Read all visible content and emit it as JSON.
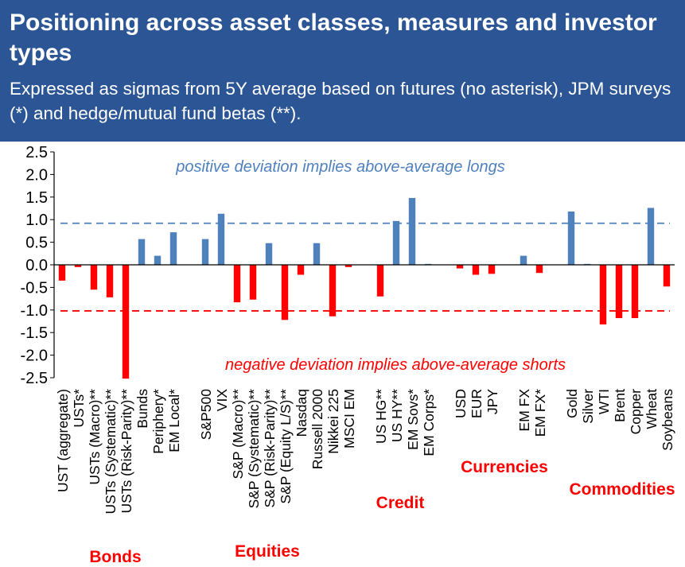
{
  "header": {
    "title": "Positioning across asset classes, measures and investor types",
    "subtitle": "Expressed as sigmas from 5Y average based on futures (no asterisk), JPM surveys (*) and hedge/mutual fund betas (**)."
  },
  "colors": {
    "header_bg": "#2c5595",
    "positive": "#4f81bd",
    "negative": "#ff0000",
    "annotation_positive": "#4f81bd",
    "annotation_negative": "#ff0000"
  },
  "chart_data": {
    "type": "bar",
    "ylim": [
      -2.5,
      2.5
    ],
    "yticks": [
      "2.5",
      "2.0",
      "1.5",
      "1.0",
      "0.5",
      "0.0",
      "-0.5",
      "-1.0",
      "-1.5",
      "-2.0",
      "-2.5"
    ],
    "ytick_values": [
      2.5,
      2.0,
      1.5,
      1.0,
      0.5,
      0.0,
      -0.5,
      -1.0,
      -1.5,
      -2.0,
      -2.5
    ],
    "reference_lines": [
      0.92,
      -1.02
    ],
    "annotations": {
      "positive": "positive deviation implies above-average longs",
      "negative": "negative deviation implies above-average shorts"
    },
    "categories": [
      "UST (aggregate)",
      "USTs*",
      "USTs (Macro)**",
      "USTs (Systematic)**",
      "USTs (Risk-Parity)**",
      "Bunds",
      "Periphery*",
      "EM Local*",
      "",
      "S&P500",
      "VIX",
      "S&P (Macro)**",
      "S&P (Systematic)**",
      "S&P (Risk-Parity)**",
      "S&P (Equity L/S)**",
      "Nasdaq",
      "Russell 2000",
      "Nikkei 225",
      "MSCI EM",
      "",
      "US HG**",
      "US HY**",
      "EM Sovs*",
      "EM Corps*",
      "",
      "USD",
      "EUR",
      "JPY",
      "",
      "EM FX",
      "EM FX*",
      "",
      "Gold",
      "Silver",
      "WTI",
      "Brent",
      "Copper",
      "Wheat",
      "Soybeans"
    ],
    "values": [
      -0.35,
      -0.05,
      -0.55,
      -0.72,
      -2.52,
      0.57,
      0.2,
      0.72,
      null,
      0.57,
      1.13,
      -0.83,
      -0.77,
      0.48,
      -1.22,
      -0.22,
      0.48,
      -1.14,
      -0.05,
      null,
      -0.7,
      0.97,
      1.48,
      0.02,
      null,
      -0.08,
      -0.22,
      -0.2,
      null,
      0.2,
      -0.18,
      null,
      1.18,
      0.02,
      -1.32,
      -1.18,
      -1.18,
      1.26,
      -0.48
    ],
    "groups": [
      {
        "name": "Bonds",
        "start": 0,
        "end": 7
      },
      {
        "name": "Equities",
        "start": 9,
        "end": 18
      },
      {
        "name": "Credit",
        "start": 20,
        "end": 23
      },
      {
        "name": "Currencies",
        "start": 25,
        "end": 30
      },
      {
        "name": "Commodities",
        "start": 32,
        "end": 38
      }
    ]
  }
}
